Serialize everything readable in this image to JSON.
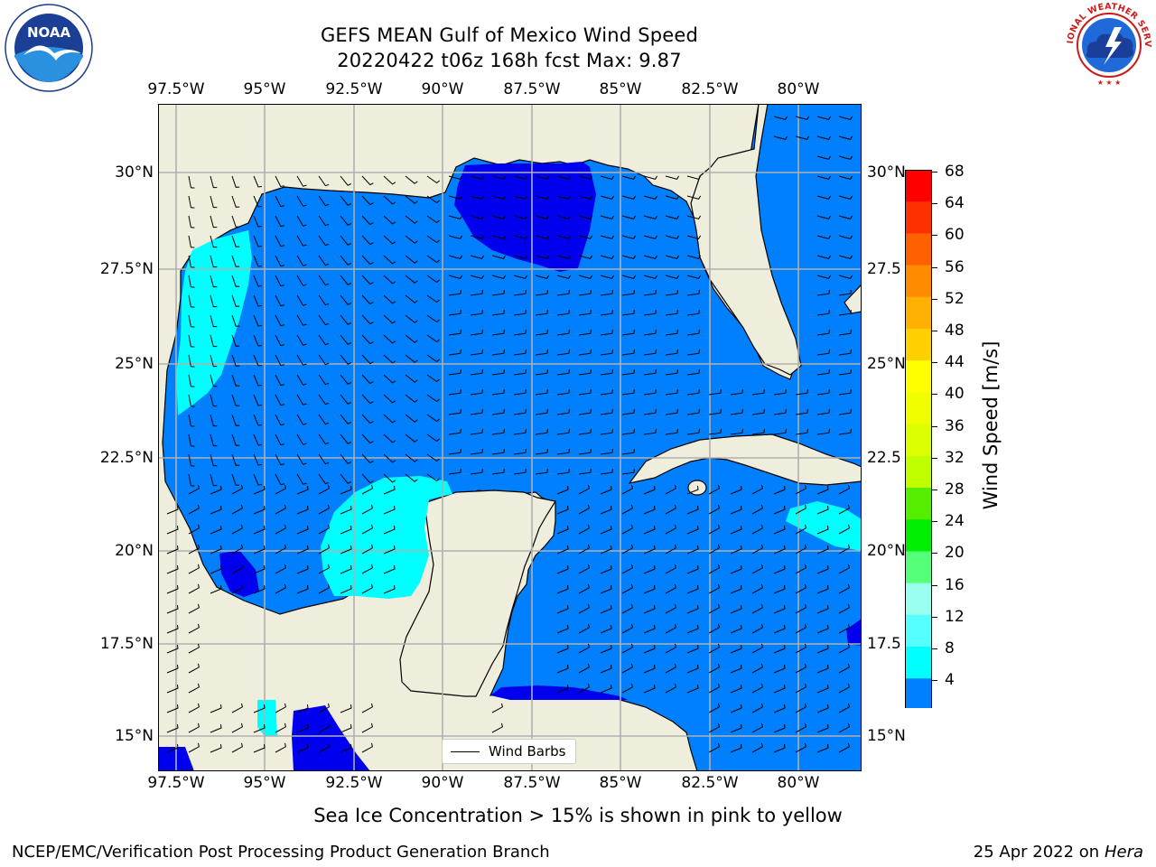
{
  "title": {
    "line1": "GEFS MEAN Gulf of Mexico Wind Speed",
    "line2": "20220422 t06z 168h fcst   Max: 9.87"
  },
  "logos": {
    "left": {
      "icon": "noaa-logo",
      "text": "NOAA"
    },
    "right": {
      "icon": "nws-logo",
      "ring_text": "NATIONAL WEATHER SERVICE"
    }
  },
  "map": {
    "lon_labels": [
      "97.5°W",
      "95°W",
      "92.5°W",
      "90°W",
      "87.5°W",
      "85°W",
      "82.5°W",
      "80°W"
    ],
    "lat_labels_left": [
      "30°N",
      "27.5°N",
      "25°N",
      "22.5°N",
      "20°N",
      "17.5°N",
      "15°N"
    ],
    "lat_labels_right": [
      "30°N",
      "27.5",
      "25°N",
      "22.5",
      "20°N",
      "17.5",
      "15°N"
    ],
    "legend_label": "Wind Barbs",
    "colors": {
      "land": "#efeedd",
      "speed_4_8": "#0080ff",
      "speed_below_4": "#0000ee",
      "speed_8_12": "#00ffff",
      "grid": "#b0b0b0"
    }
  },
  "colorbar": {
    "label": "Wind Speed [m/s]",
    "ticks": [
      "68",
      "64",
      "60",
      "56",
      "52",
      "48",
      "44",
      "40",
      "36",
      "32",
      "28",
      "24",
      "20",
      "16",
      "12",
      "8",
      "4"
    ],
    "colors": [
      "#ff0000",
      "#ff3000",
      "#ff6000",
      "#ff8c00",
      "#ffb000",
      "#ffd000",
      "#ffff00",
      "#f0ff00",
      "#dcff00",
      "#c0ff00",
      "#55ee00",
      "#00ee00",
      "#55ff77",
      "#99ffee",
      "#55ffff",
      "#00ffff",
      "#0080ff"
    ],
    "under_color": "#0000ee"
  },
  "subtitle": "Sea Ice Concentration > 15% is shown in pink to yellow",
  "footer": {
    "left": "NCEP/EMC/Verification Post Processing Product Generation Branch",
    "right_date": "25 Apr 2022 on ",
    "right_host": "Hera"
  }
}
